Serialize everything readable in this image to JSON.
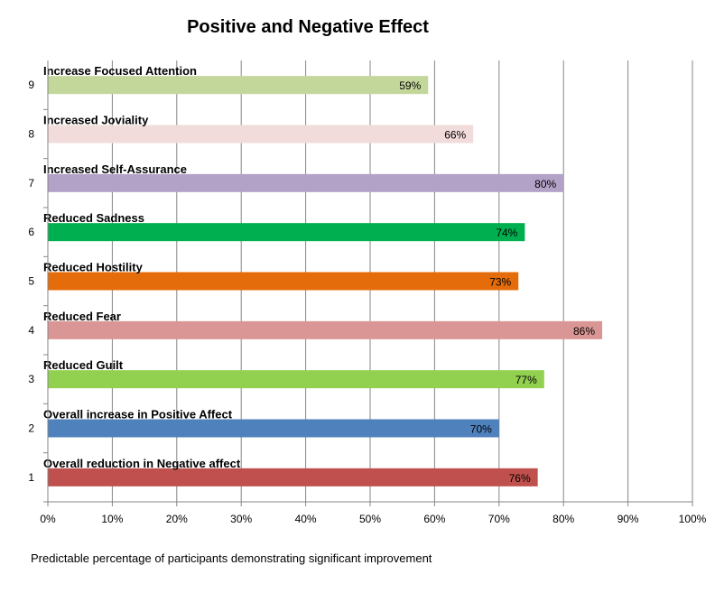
{
  "chart_data": {
    "type": "bar",
    "orientation": "horizontal",
    "title": "Positive and Negative Effect",
    "xlabel": "Predictable percentage of  participants demonstrating significant improvement",
    "ylabel": "",
    "xlim": [
      0,
      100
    ],
    "x_ticks": [
      "0%",
      "10%",
      "20%",
      "30%",
      "40%",
      "50%",
      "60%",
      "70%",
      "80%",
      "90%",
      "100%"
    ],
    "grid": "vertical",
    "legend": "none",
    "categories": [
      "1",
      "2",
      "3",
      "4",
      "5",
      "6",
      "7",
      "8",
      "9"
    ],
    "bar_labels": [
      "Overall  reduction in Negative affect",
      "Overall  increase in Positive Affect",
      "Reduced Guilt",
      "Reduced Fear",
      "Reduced Hostility",
      "Reduced Sadness",
      "Increased  Self-Assurance",
      "Increased Joviality",
      "Increase Focused Attention"
    ],
    "values": [
      76,
      70,
      77,
      86,
      73,
      74,
      80,
      66,
      59
    ],
    "value_labels": [
      "76%",
      "70%",
      "77%",
      "86%",
      "73%",
      "74%",
      "80%",
      "66%",
      "59%"
    ],
    "colors": [
      "#c0504d",
      "#4f81bd",
      "#92d050",
      "#da9694",
      "#e46c0a",
      "#00b050",
      "#b3a2c7",
      "#f2dcdb",
      "#c4d79b"
    ]
  }
}
